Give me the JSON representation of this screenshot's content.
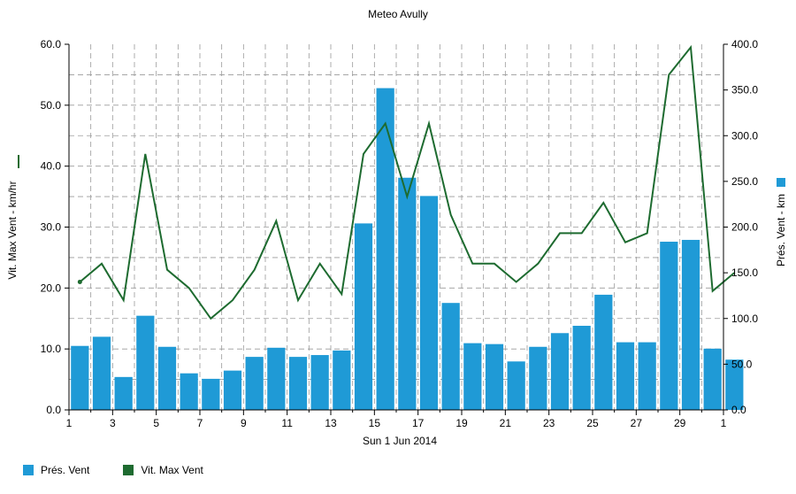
{
  "chart_data": {
    "type": "bar",
    "title": "Meteo  Avully",
    "xlabel": "Sun 1 Jun 2014",
    "ylabel_left": "Vit. Max Vent - km/hr",
    "ylabel_right": "Prés. Vent - km",
    "x_tick_labels": [
      "1",
      "3",
      "5",
      "7",
      "9",
      "11",
      "13",
      "15",
      "17",
      "19",
      "21",
      "23",
      "25",
      "27",
      "29",
      "1"
    ],
    "y_left_ticks": [
      "0.0",
      "10.0",
      "20.0",
      "30.0",
      "40.0",
      "50.0",
      "60.0"
    ],
    "y_right_ticks": [
      "0.0",
      "50.0",
      "100.0",
      "150.0",
      "200.0",
      "250.0",
      "300.0",
      "350.0",
      "400.0"
    ],
    "ylim_left": [
      0,
      60
    ],
    "ylim_right": [
      0,
      400
    ],
    "grid": true,
    "legend_position": "bottom-left",
    "colors": {
      "bar": "#1f9ad6",
      "line": "#1e6b30",
      "grid": "#9a9a9a"
    },
    "series": [
      {
        "name": "Prés. Vent",
        "type": "bar",
        "axis": "right",
        "values": [
          70,
          80,
          36,
          103,
          69,
          40,
          34,
          43,
          58,
          68,
          58,
          60,
          65,
          204,
          352,
          254,
          234,
          117,
          73,
          72,
          53,
          69,
          84,
          92,
          126,
          74,
          74,
          184,
          186,
          67,
          55
        ]
      },
      {
        "name": "Vit. Max Vent",
        "type": "line",
        "axis": "left",
        "values": [
          21,
          24,
          18,
          42,
          23,
          20,
          15,
          18,
          23,
          31,
          18,
          24,
          19,
          42,
          47,
          35,
          47,
          32,
          24,
          24,
          21,
          24,
          29,
          29,
          34,
          27.5,
          29,
          55,
          59.5,
          19.5,
          22.5
        ]
      }
    ]
  },
  "legend": {
    "bar_label": "Prés. Vent",
    "line_label": "Vit. Max Vent"
  }
}
